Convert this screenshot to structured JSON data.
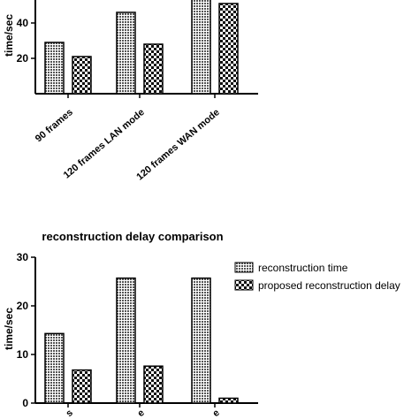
{
  "chart_data": [
    {
      "type": "bar",
      "title": "",
      "ylabel": "time/sec",
      "xlabel": "",
      "ylim": [
        0,
        60
      ],
      "yticks": [
        "20",
        "40"
      ],
      "categories": [
        "90 frames",
        "120 frames LAN mode",
        "120 frames WAN mode"
      ],
      "series": [
        {
          "values": [
            29,
            46,
            54
          ]
        },
        {
          "values": [
            21,
            28,
            51
          ]
        }
      ],
      "grid": false
    },
    {
      "type": "bar",
      "title": "reconstruction delay comparison",
      "ylabel": "time/sec",
      "xlabel": "",
      "ylim": [
        0,
        30
      ],
      "yticks": [
        "0",
        "10",
        "20",
        "30"
      ],
      "categories": [
        "s",
        "e",
        "e"
      ],
      "series": [
        {
          "name": "reconstruction time",
          "values": [
            14.3,
            25.7,
            25.7
          ]
        },
        {
          "name": "proposed reconstruction delay",
          "values": [
            6.8,
            7.6,
            1.0
          ]
        }
      ],
      "legend": "top-right",
      "grid": false
    }
  ],
  "colors": {
    "series1_fill": "#7a7a7a",
    "series2_fill": "#ffffff",
    "axis": "#000000"
  }
}
